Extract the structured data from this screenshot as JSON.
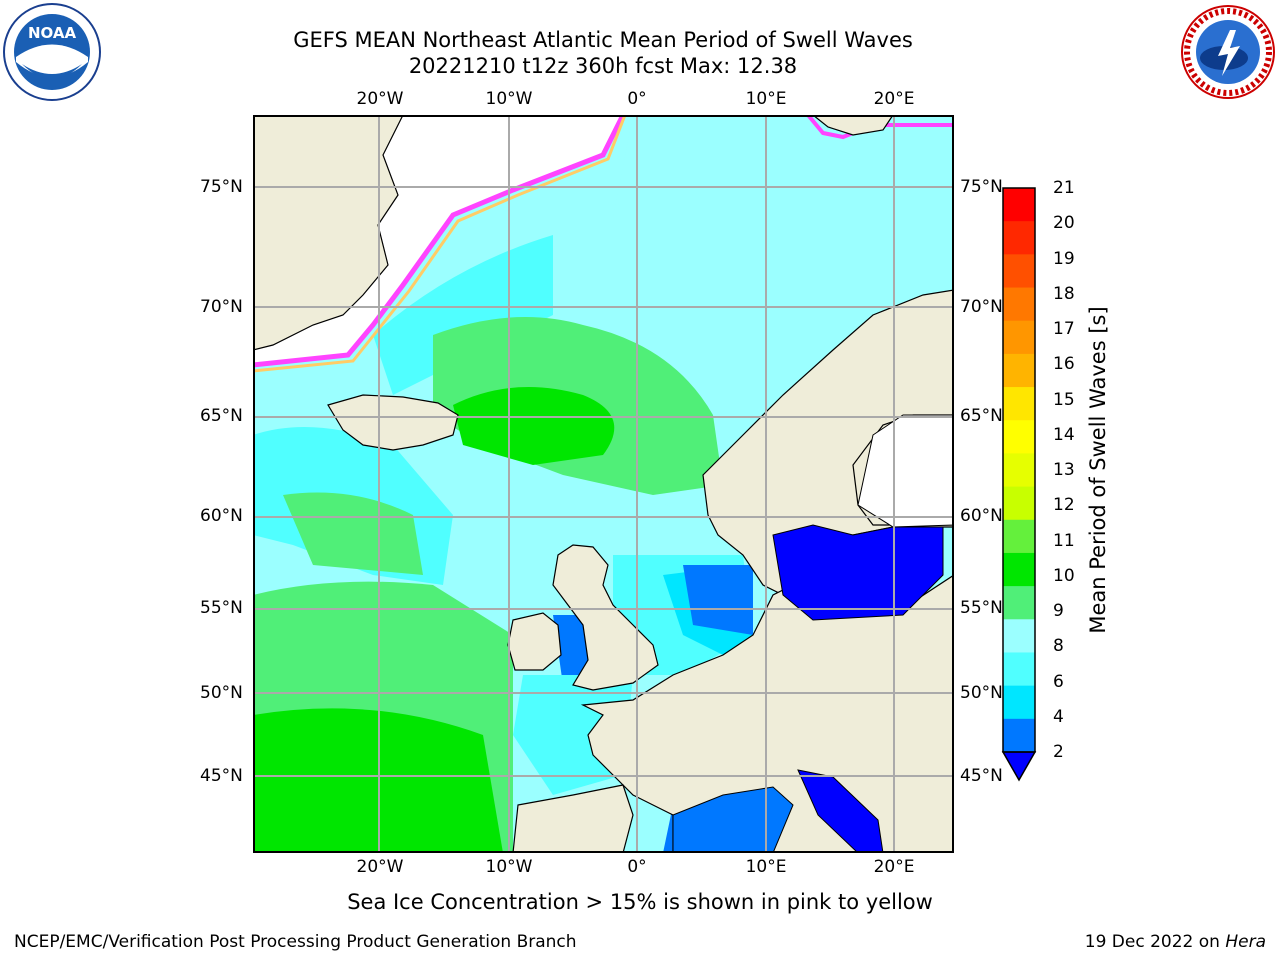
{
  "title_line1": "GEFS MEAN Northeast Atlantic Mean Period of Swell Waves",
  "title_line2": "20221210 t12z 360h fcst   Max: 12.38",
  "lon_labels": [
    "20°W",
    "10°W",
    "0°",
    "10°E",
    "20°E"
  ],
  "lat_labels": [
    "75°N",
    "70°N",
    "65°N",
    "60°N",
    "55°N",
    "50°N",
    "45°N"
  ],
  "colorbar": {
    "label": "Mean Period of Swell Waves [s]",
    "ticks": [
      "21",
      "20",
      "19",
      "18",
      "17",
      "16",
      "15",
      "14",
      "13",
      "12",
      "11",
      "10",
      "9",
      "8",
      "6",
      "4",
      "2"
    ],
    "colors": [
      "#ff0000",
      "#ff2800",
      "#ff5000",
      "#ff7800",
      "#ff9600",
      "#ffb400",
      "#ffe600",
      "#ffff00",
      "#e6ff00",
      "#c8ff00",
      "#64f03c",
      "#00e600",
      "#50ef78",
      "#9bffff",
      "#50ffff",
      "#00e6ff",
      "#0078ff",
      "#0000ff"
    ]
  },
  "note": "Sea Ice Concentration > 15% is shown in pink to yellow",
  "footer_left": "NCEP/EMC/Verification Post Processing Product Generation Branch",
  "footer_right_prefix": "19 Dec 2022 on ",
  "footer_right_host": "Hera",
  "logos": {
    "left": "NOAA",
    "right": "NATIONAL WEATHER SERVICE"
  }
}
